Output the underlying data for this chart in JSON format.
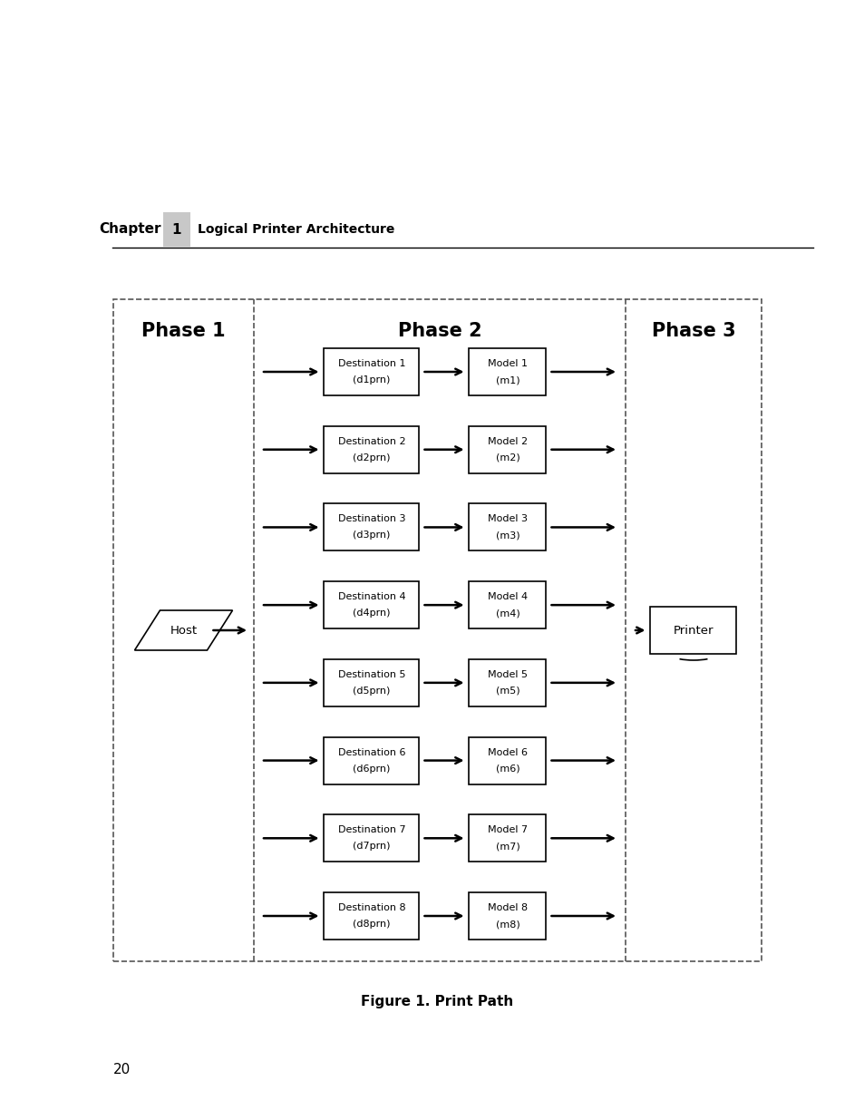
{
  "title": "Figure 1. Print Path",
  "chapter_label": "Chapter",
  "chapter_num": "1",
  "chapter_subtitle": "Logical Printer Architecture",
  "page_num": "20",
  "phase1_label": "Phase 1",
  "phase2_label": "Phase 2",
  "phase3_label": "Phase 3",
  "destinations": [
    [
      "Destination 1",
      "(d1prn)"
    ],
    [
      "Destination 2",
      "(d2prn)"
    ],
    [
      "Destination 3",
      "(d3prn)"
    ],
    [
      "Destination 4",
      "(d4prn)"
    ],
    [
      "Destination 5",
      "(d5prn)"
    ],
    [
      "Destination 6",
      "(d6prn)"
    ],
    [
      "Destination 7",
      "(d7prn)"
    ],
    [
      "Destination 8",
      "(d8prn)"
    ]
  ],
  "models": [
    [
      "Model 1",
      "(m1)"
    ],
    [
      "Model 2",
      "(m2)"
    ],
    [
      "Model 3",
      "(m3)"
    ],
    [
      "Model 4",
      "(m4)"
    ],
    [
      "Model 5",
      "(m5)"
    ],
    [
      "Model 6",
      "(m6)"
    ],
    [
      "Model 7",
      "(m7)"
    ],
    [
      "Model 8",
      "(m8)"
    ]
  ],
  "host_label": "Host",
  "printer_label": "Printer",
  "bg_color": "#ffffff",
  "dashed_color": "#555555",
  "arrow_color": "#000000",
  "text_color": "#000000",
  "gray_box": "#c8c8c8"
}
